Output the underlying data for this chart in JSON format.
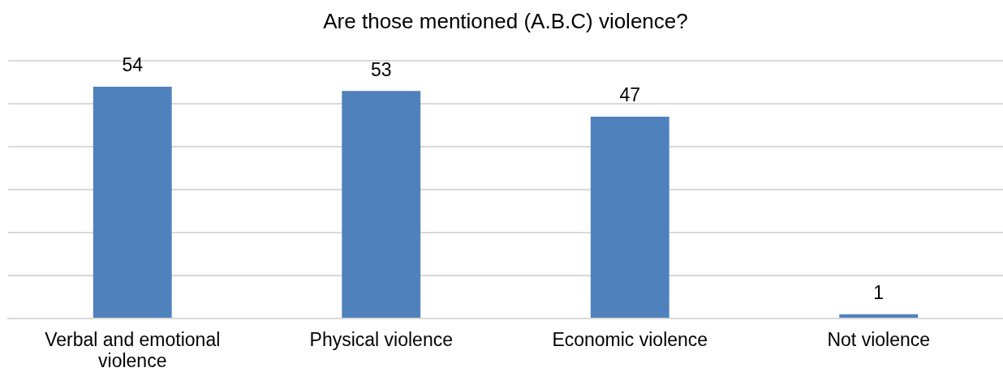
{
  "chart_data": {
    "type": "bar",
    "title": "Are those mentioned (A.B.C) violence?",
    "categories": [
      "Verbal and emotional violence",
      "Physical violence",
      "Economic violence",
      "Not violence"
    ],
    "values": [
      54,
      53,
      47,
      1
    ],
    "color": "#4f81bd",
    "ylim": [
      0,
      60
    ],
    "yticks": [
      0,
      10,
      20,
      30,
      40,
      50,
      60
    ],
    "grid": "y",
    "tick_labels": "x",
    "data_labels": true
  }
}
